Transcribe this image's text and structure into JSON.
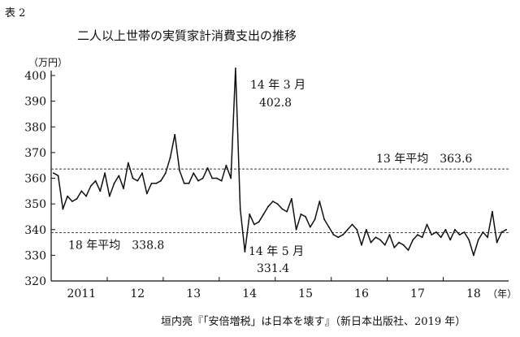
{
  "table_label": "表 2",
  "source": "垣内亮『「安倍増税」は日本を壊す』（新日本出版社、2019 年）",
  "chart_data": {
    "type": "line",
    "title": "二人以上世帯の実質家計消費支出の推移",
    "y_unit_label": "（万円）",
    "x_unit_label": "（年）",
    "ylim": [
      320,
      400
    ],
    "y_ticks": [
      320,
      330,
      340,
      350,
      360,
      370,
      380,
      390,
      400
    ],
    "y_tick_labels": [
      "320",
      "330",
      "340",
      "350",
      "360",
      "370",
      "380",
      "390",
      "400"
    ],
    "x_tick_labels": [
      "2011",
      "12",
      "13",
      "14",
      "15",
      "16",
      "17",
      "18"
    ],
    "x_tick_month_index": [
      6,
      18,
      30,
      42,
      54,
      66,
      78,
      90
    ],
    "series": [
      {
        "values": [
          362,
          361,
          348,
          353,
          351,
          352,
          355,
          353,
          357,
          359,
          355,
          362,
          353,
          358,
          361,
          356,
          366,
          360,
          359,
          362,
          354,
          358,
          358,
          359,
          362,
          368,
          377,
          363,
          358,
          358,
          362,
          359,
          360,
          364,
          360,
          360,
          359,
          365,
          360,
          402.8,
          348,
          331.4,
          346,
          342,
          343,
          346,
          349,
          351,
          350,
          348,
          347,
          352,
          340,
          346,
          345,
          341,
          344,
          351,
          344,
          341,
          338,
          337,
          338,
          340,
          342,
          340,
          334,
          340,
          335,
          337,
          336,
          334,
          338,
          333,
          335,
          334,
          332,
          336,
          338,
          337,
          342,
          338,
          339,
          337,
          340,
          336,
          340,
          338,
          339,
          336,
          330,
          336,
          339,
          337,
          347,
          335,
          339,
          340
        ]
      }
    ],
    "reference_lines": [
      {
        "value": 363.6,
        "label": "13 年平均　363.6"
      },
      {
        "value": 338.8,
        "label": "18 年平均　338.8"
      }
    ],
    "annotations": [
      {
        "label_line1": "14 年 3 月",
        "label_line2": "402.8",
        "value": 402.8
      },
      {
        "label_line1": "14 年 5 月",
        "label_line2": "331.4",
        "value": 331.4
      }
    ]
  }
}
